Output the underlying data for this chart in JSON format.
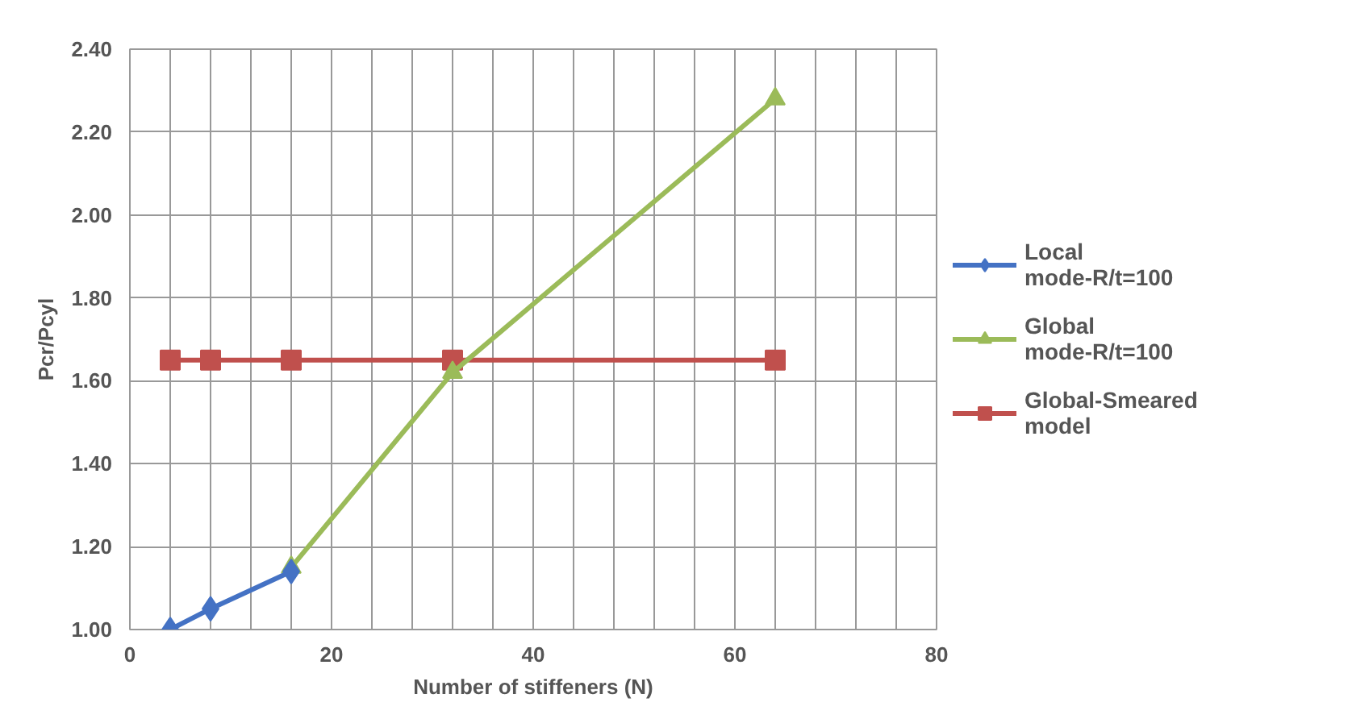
{
  "chart_data": {
    "type": "line",
    "xlabel": "Number of stiffeners (N)",
    "ylabel": "Pcr/Pcyl",
    "xlim": [
      0,
      80
    ],
    "ylim": [
      1.0,
      2.4
    ],
    "xticks": [
      0,
      {
        "value": 4,
        "label": null
      },
      {
        "value": 8,
        "label": null
      },
      {
        "value": 12,
        "label": null
      },
      {
        "value": 16,
        "label": null
      },
      20,
      {
        "value": 24,
        "label": null
      },
      {
        "value": 28,
        "label": null
      },
      {
        "value": 32,
        "label": null
      },
      {
        "value": 36,
        "label": null
      },
      40,
      {
        "value": 44,
        "label": null
      },
      {
        "value": 48,
        "label": null
      },
      {
        "value": 52,
        "label": null
      },
      {
        "value": 56,
        "label": null
      },
      60,
      {
        "value": 64,
        "label": null
      },
      {
        "value": 68,
        "label": null
      },
      {
        "value": 72,
        "label": null
      },
      {
        "value": 76,
        "label": null
      },
      80
    ],
    "yticks": [
      {
        "value": 1.0,
        "label": "1.00"
      },
      {
        "value": 1.2,
        "label": "1.20"
      },
      {
        "value": 1.4,
        "label": "1.40"
      },
      {
        "value": 1.6,
        "label": "1.60"
      },
      {
        "value": 1.8,
        "label": "1.80"
      },
      {
        "value": 2.0,
        "label": "2.00"
      },
      {
        "value": 2.2,
        "label": "2.20"
      },
      {
        "value": 2.4,
        "label": "2.40"
      }
    ],
    "grid": true,
    "legend": "right",
    "series": [
      {
        "name": "Local mode-R/t=100",
        "color": "#4472c4",
        "marker": "diamond",
        "x": [
          4,
          8,
          16
        ],
        "values": [
          1.0,
          1.05,
          1.14
        ]
      },
      {
        "name": "Global mode-R/t=100",
        "color": "#9bbb59",
        "marker": "triangle",
        "x": [
          16,
          32,
          64
        ],
        "values": [
          1.15,
          1.62,
          2.28
        ]
      },
      {
        "name": "Global-Smeared model",
        "color": "#c0504d",
        "marker": "square",
        "x": [
          4,
          8,
          16,
          32,
          64
        ],
        "values": [
          1.65,
          1.65,
          1.65,
          1.65,
          1.65
        ]
      }
    ]
  }
}
